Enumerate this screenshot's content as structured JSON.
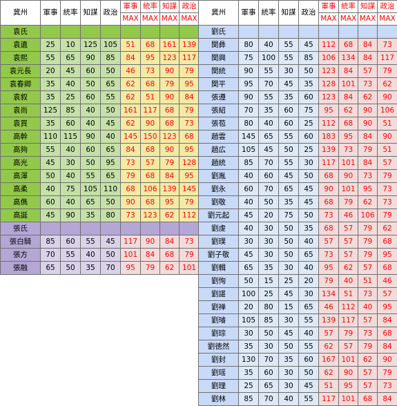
{
  "headers": {
    "province": "冀州",
    "stats": [
      "軍事",
      "統率",
      "知謀",
      "政治"
    ],
    "max_stats": [
      "軍事",
      "統率",
      "知謀",
      "政治"
    ],
    "max_label": "MAX"
  },
  "left": {
    "groups": [
      {
        "clan": "袁氏",
        "rows": [
          {
            "name": "袁遺",
            "stats": [
              "25",
              "10",
              "125",
              "105"
            ],
            "max": [
              "51",
              "68",
              "161",
              "139"
            ]
          },
          {
            "name": "袁熙",
            "stats": [
              "55",
              "65",
              "90",
              "85"
            ],
            "max": [
              "84",
              "95",
              "123",
              "117"
            ]
          },
          {
            "name": "袁元長",
            "stats": [
              "20",
              "45",
              "60",
              "50"
            ],
            "max": [
              "46",
              "73",
              "90",
              "79"
            ]
          },
          {
            "name": "袁春卿",
            "stats": [
              "35",
              "40",
              "50",
              "65"
            ],
            "max": [
              "62",
              "68",
              "79",
              "95"
            ]
          },
          {
            "name": "袁叙",
            "stats": [
              "35",
              "25",
              "60",
              "55"
            ],
            "max": [
              "62",
              "51",
              "90",
              "84"
            ]
          },
          {
            "name": "袁尚",
            "stats": [
              "125",
              "85",
              "40",
              "50"
            ],
            "max": [
              "161",
              "117",
              "68",
              "79"
            ]
          },
          {
            "name": "袁買",
            "stats": [
              "35",
              "60",
              "40",
              "45"
            ],
            "max": [
              "62",
              "90",
              "68",
              "73"
            ]
          },
          {
            "name": "高幹",
            "stats": [
              "110",
              "115",
              "90",
              "40"
            ],
            "max": [
              "145",
              "150",
              "123",
              "68"
            ]
          },
          {
            "name": "高夠",
            "stats": [
              "55",
              "40",
              "60",
              "65"
            ],
            "max": [
              "84",
              "68",
              "90",
              "95"
            ]
          },
          {
            "name": "高光",
            "stats": [
              "45",
              "30",
              "50",
              "95"
            ],
            "max": [
              "73",
              "57",
              "79",
              "128"
            ]
          },
          {
            "name": "高渾",
            "stats": [
              "50",
              "40",
              "55",
              "65"
            ],
            "max": [
              "79",
              "68",
              "84",
              "95"
            ]
          },
          {
            "name": "高柔",
            "stats": [
              "40",
              "75",
              "105",
              "110"
            ],
            "max": [
              "68",
              "106",
              "139",
              "145"
            ]
          },
          {
            "name": "高儁",
            "stats": [
              "60",
              "40",
              "65",
              "50"
            ],
            "max": [
              "90",
              "68",
              "95",
              "79"
            ]
          },
          {
            "name": "高誕",
            "stats": [
              "45",
              "90",
              "35",
              "80"
            ],
            "max": [
              "73",
              "123",
              "62",
              "112"
            ]
          }
        ]
      },
      {
        "clan": "張氏",
        "rows": [
          {
            "name": "張白騎",
            "stats": [
              "85",
              "60",
              "55",
              "45"
            ],
            "max": [
              "117",
              "90",
              "84",
              "73"
            ]
          },
          {
            "name": "張方",
            "stats": [
              "70",
              "55",
              "40",
              "50"
            ],
            "max": [
              "101",
              "84",
              "68",
              "79"
            ]
          },
          {
            "name": "張融",
            "stats": [
              "65",
              "50",
              "35",
              "70"
            ],
            "max": [
              "95",
              "79",
              "62",
              "101"
            ]
          }
        ]
      }
    ]
  },
  "right": {
    "groups": [
      {
        "clan": "劉氏",
        "rows": [
          {
            "name": "関彝",
            "stats": [
              "80",
              "40",
              "55",
              "45"
            ],
            "max": [
              "112",
              "68",
              "84",
              "73"
            ]
          },
          {
            "name": "関興",
            "stats": [
              "75",
              "100",
              "55",
              "85"
            ],
            "max": [
              "106",
              "134",
              "84",
              "117"
            ]
          },
          {
            "name": "関統",
            "stats": [
              "90",
              "55",
              "30",
              "50"
            ],
            "max": [
              "123",
              "84",
              "57",
              "79"
            ]
          },
          {
            "name": "関平",
            "stats": [
              "95",
              "70",
              "45",
              "35"
            ],
            "max": [
              "128",
              "101",
              "73",
              "62"
            ]
          },
          {
            "name": "張遵",
            "stats": [
              "90",
              "55",
              "35",
              "60"
            ],
            "max": [
              "123",
              "84",
              "62",
              "90"
            ]
          },
          {
            "name": "張紹",
            "stats": [
              "70",
              "35",
              "60",
              "75"
            ],
            "max": [
              "95",
              "62",
              "90",
              "106"
            ]
          },
          {
            "name": "張苞",
            "stats": [
              "80",
              "40",
              "60",
              "25"
            ],
            "max": [
              "112",
              "68",
              "90",
              "51"
            ]
          },
          {
            "name": "趙雲",
            "stats": [
              "145",
              "65",
              "55",
              "60"
            ],
            "max": [
              "183",
              "95",
              "84",
              "90"
            ]
          },
          {
            "name": "趙広",
            "stats": [
              "105",
              "45",
              "50",
              "25"
            ],
            "max": [
              "139",
              "73",
              "79",
              "51"
            ]
          },
          {
            "name": "趙統",
            "stats": [
              "85",
              "70",
              "55",
              "30"
            ],
            "max": [
              "117",
              "101",
              "84",
              "57"
            ]
          },
          {
            "name": "劉胤",
            "stats": [
              "40",
              "60",
              "45",
              "50"
            ],
            "max": [
              "68",
              "90",
              "73",
              "79"
            ]
          },
          {
            "name": "劉永",
            "stats": [
              "60",
              "70",
              "65",
              "45"
            ],
            "max": [
              "90",
              "101",
              "95",
              "73"
            ]
          },
          {
            "name": "劉敬",
            "stats": [
              "40",
              "50",
              "35",
              "45"
            ],
            "max": [
              "68",
              "79",
              "62",
              "73"
            ]
          },
          {
            "name": "劉元起",
            "stats": [
              "45",
              "20",
              "75",
              "50"
            ],
            "max": [
              "73",
              "46",
              "106",
              "79"
            ]
          },
          {
            "name": "劉虔",
            "stats": [
              "40",
              "30",
              "50",
              "35"
            ],
            "max": [
              "68",
              "57",
              "79",
              "62"
            ]
          },
          {
            "name": "劉璞",
            "stats": [
              "30",
              "30",
              "50",
              "40"
            ],
            "max": [
              "57",
              "57",
              "79",
              "68"
            ]
          },
          {
            "name": "劉子敬",
            "stats": [
              "45",
              "30",
              "50",
              "65"
            ],
            "max": [
              "73",
              "57",
              "79",
              "95"
            ]
          },
          {
            "name": "劉輯",
            "stats": [
              "65",
              "35",
              "30",
              "40"
            ],
            "max": [
              "95",
              "62",
              "57",
              "68"
            ]
          },
          {
            "name": "劉恂",
            "stats": [
              "50",
              "15",
              "25",
              "20"
            ],
            "max": [
              "79",
              "40",
              "51",
              "46"
            ]
          },
          {
            "name": "劉諶",
            "stats": [
              "100",
              "25",
              "45",
              "30"
            ],
            "max": [
              "134",
              "51",
              "73",
              "57"
            ]
          },
          {
            "name": "劉禅",
            "stats": [
              "20",
              "80",
              "15",
              "65"
            ],
            "max": [
              "46",
              "112",
              "40",
              "95"
            ]
          },
          {
            "name": "劉璿",
            "stats": [
              "105",
              "85",
              "30",
              "55"
            ],
            "max": [
              "139",
              "117",
              "57",
              "84"
            ]
          },
          {
            "name": "劉琮",
            "stats": [
              "30",
              "50",
              "45",
              "40"
            ],
            "max": [
              "57",
              "79",
              "73",
              "68"
            ]
          },
          {
            "name": "劉徳然",
            "stats": [
              "35",
              "30",
              "50",
              "55"
            ],
            "max": [
              "62",
              "57",
              "79",
              "84"
            ]
          },
          {
            "name": "劉封",
            "stats": [
              "130",
              "70",
              "35",
              "60"
            ],
            "max": [
              "167",
              "101",
              "62",
              "90"
            ]
          },
          {
            "name": "劉瑶",
            "stats": [
              "35",
              "60",
              "30",
              "50"
            ],
            "max": [
              "62",
              "90",
              "57",
              "79"
            ]
          },
          {
            "name": "劉理",
            "stats": [
              "25",
              "65",
              "30",
              "45"
            ],
            "max": [
              "51",
              "95",
              "57",
              "73"
            ]
          },
          {
            "name": "劉林",
            "stats": [
              "85",
              "70",
              "40",
              "55"
            ],
            "max": [
              "117",
              "101",
              "68",
              "84"
            ]
          }
        ]
      }
    ]
  },
  "colors": {
    "max_text": "#ff0000",
    "yuan_name": "#93c94a",
    "yuan_stat": "#c5e0a8",
    "yuan_max": "#f3eaa5",
    "zhang_name": "#b4a7d6",
    "zhang_stat": "#d9d2e9",
    "liu_name": "#c9daf8",
    "liu_stat": "#dde9f6",
    "max_bg": "#f2dcdb"
  }
}
